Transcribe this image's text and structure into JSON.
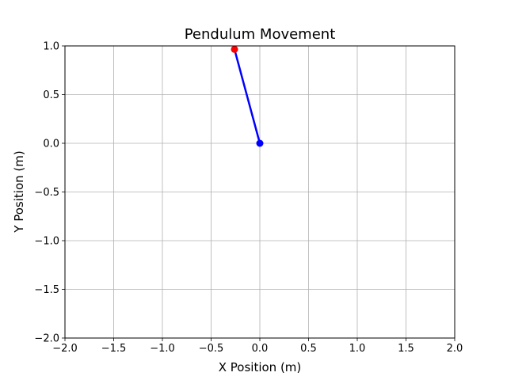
{
  "chart_data": {
    "type": "line",
    "title": "Pendulum Movement",
    "xlabel": "X Position (m)",
    "ylabel": "Y Position (m)",
    "xlim": [
      -2.0,
      2.0
    ],
    "ylim": [
      -2.0,
      1.0
    ],
    "xticks": [
      -2.0,
      -1.5,
      -1.0,
      -0.5,
      0.0,
      0.5,
      1.0,
      1.5,
      2.0
    ],
    "xtick_labels": [
      "−2.0",
      "−1.5",
      "−1.0",
      "−0.5",
      "0.0",
      "0.5",
      "1.0",
      "1.5",
      "2.0"
    ],
    "yticks": [
      -2.0,
      -1.5,
      -1.0,
      -0.5,
      0.0,
      0.5,
      1.0
    ],
    "ytick_labels": [
      "−2.0",
      "−1.5",
      "−1.0",
      "−0.5",
      "0.0",
      "0.5",
      "1.0"
    ],
    "grid": true,
    "pivot": {
      "x": 0.0,
      "y": 0.0,
      "color": "#0000ff"
    },
    "bob": {
      "x": -0.26,
      "y": 0.965,
      "color": "#ff0000"
    },
    "rod_color": "#0000ff"
  }
}
